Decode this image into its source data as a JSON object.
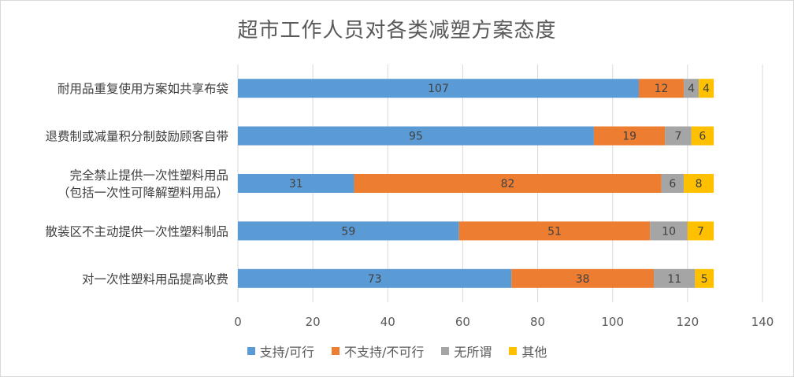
{
  "chart_data": {
    "type": "bar",
    "orientation": "horizontal",
    "stacked": true,
    "title": "超市工作人员对各类减塑方案态度",
    "categories": [
      "耐用品重复使用方案如共享布袋",
      "退费制或减量积分制鼓励顾客自带",
      "完全禁止提供一次性塑料用品\n（包括一次性可降解塑料用品）",
      "散装区不主动提供一次性塑料制品",
      "对一次性塑料用品提高收费"
    ],
    "series": [
      {
        "name": "支持/可行",
        "color": "#5b9bd5",
        "values": [
          107,
          95,
          31,
          59,
          73
        ]
      },
      {
        "name": "不支持/不可行",
        "color": "#ed7d31",
        "values": [
          12,
          19,
          82,
          51,
          38
        ]
      },
      {
        "name": "无所谓",
        "color": "#a5a5a5",
        "values": [
          4,
          7,
          6,
          10,
          11
        ]
      },
      {
        "name": "其他",
        "color": "#ffc000",
        "values": [
          4,
          6,
          8,
          7,
          5
        ]
      }
    ],
    "xlim": [
      0,
      140
    ],
    "xticks": [
      0,
      20,
      40,
      60,
      80,
      100,
      120,
      140
    ],
    "grid": true,
    "legend_position": "bottom"
  }
}
